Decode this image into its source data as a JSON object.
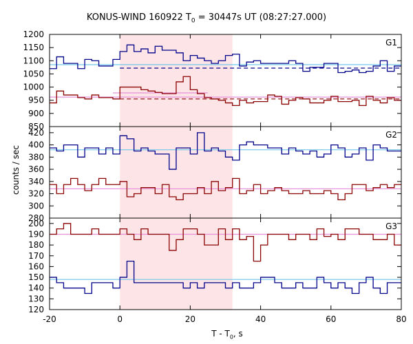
{
  "title_prefix": "KONUS-WIND 160922 T",
  "title_sub": "0",
  "title_suffix": " = 30447s UT (08:27:27.000)",
  "ylabel": "counts / sec",
  "xlabel_prefix": "T - T",
  "xlabel_sub": "0",
  "xlabel_suffix": ", s",
  "chart_data": {
    "type": "line",
    "description_style": "step histograms in three stacked panels",
    "x_axis": {
      "range": [
        -20,
        80
      ],
      "ticks": [
        -20,
        0,
        20,
        40,
        60,
        80
      ]
    },
    "shaded_interval": {
      "x": [
        0,
        32
      ],
      "color": "#fde4e6"
    },
    "bin_edges": [
      -20,
      -18,
      -16,
      -14,
      -12,
      -10,
      -8,
      -6,
      -4,
      -2,
      0,
      2,
      4,
      6,
      8,
      10,
      12,
      14,
      16,
      18,
      20,
      22,
      24,
      26,
      28,
      30,
      32,
      34,
      36,
      38,
      40,
      42,
      44,
      46,
      48,
      50,
      52,
      54,
      56,
      58,
      60,
      62,
      64,
      66,
      68,
      70,
      72,
      74,
      76,
      78,
      80
    ],
    "panels": [
      {
        "name": "G1",
        "ylim": [
          850,
          1200
        ],
        "yticks": [
          850,
          900,
          950,
          1000,
          1050,
          1100,
          1150,
          1200
        ],
        "series": [
          {
            "color": "#00008b",
            "values": [
              1070,
              1115,
              1090,
              1090,
              1070,
              1105,
              1100,
              1080,
              1080,
              1105,
              1135,
              1160,
              1135,
              1145,
              1130,
              1155,
              1140,
              1140,
              1130,
              1100,
              1120,
              1110,
              1100,
              1090,
              1100,
              1120,
              1125,
              1080,
              1095,
              1100,
              1090,
              1090,
              1090,
              1090,
              1100,
              1090,
              1060,
              1075,
              1075,
              1090,
              1090,
              1055,
              1060,
              1065,
              1055,
              1060,
              1080,
              1100,
              1060,
              1080
            ],
            "background_level": 1072,
            "background_style": "dashed",
            "fit_level": 1085,
            "fit_color": "#6ec6ea"
          },
          {
            "color": "#8b0000",
            "values": [
              940,
              985,
              970,
              970,
              960,
              955,
              970,
              960,
              960,
              955,
              1000,
              1000,
              1000,
              990,
              985,
              980,
              975,
              975,
              1020,
              1040,
              990,
              975,
              960,
              955,
              950,
              940,
              930,
              950,
              940,
              945,
              945,
              970,
              965,
              935,
              950,
              960,
              955,
              940,
              940,
              950,
              965,
              945,
              945,
              950,
              930,
              965,
              950,
              940,
              960,
              950
            ],
            "background_level": 955,
            "background_style": "dashed",
            "fit_level": 962,
            "fit_color": "#e58fd8",
            "fit_segment": {
              "x": [
                -2,
                25
              ],
              "level": 978
            }
          }
        ]
      },
      {
        "name": "G2",
        "ylim": [
          280,
          430
        ],
        "yticks": [
          280,
          300,
          320,
          340,
          360,
          380,
          400,
          420
        ],
        "series": [
          {
            "color": "#00008b",
            "values": [
              395,
              390,
              400,
              400,
              380,
              395,
              395,
              385,
              395,
              385,
              415,
              410,
              390,
              395,
              390,
              385,
              385,
              360,
              395,
              395,
              385,
              420,
              390,
              395,
              390,
              380,
              375,
              400,
              405,
              400,
              400,
              395,
              395,
              385,
              395,
              390,
              385,
              390,
              380,
              385,
              400,
              395,
              380,
              385,
              395,
              375,
              400,
              395,
              390,
              390
            ],
            "fit_level": 392,
            "fit_color": "#6ec6ea"
          },
          {
            "color": "#8b0000",
            "values": [
              335,
              320,
              335,
              345,
              335,
              325,
              335,
              345,
              335,
              335,
              340,
              315,
              320,
              330,
              330,
              320,
              335,
              315,
              310,
              320,
              320,
              330,
              320,
              340,
              325,
              330,
              345,
              320,
              325,
              335,
              320,
              325,
              330,
              325,
              320,
              320,
              325,
              320,
              320,
              325,
              320,
              310,
              320,
              335,
              335,
              325,
              330,
              335,
              330,
              335
            ],
            "fit_level": 328,
            "fit_color": "#e58fd8"
          }
        ]
      },
      {
        "name": "G3",
        "ylim": [
          120,
          205
        ],
        "yticks": [
          120,
          130,
          140,
          150,
          160,
          170,
          180,
          190,
          200
        ],
        "series": [
          {
            "color": "#8b0000",
            "values": [
              190,
              195,
              200,
              190,
              190,
              190,
              195,
              190,
              190,
              190,
              195,
              190,
              185,
              195,
              190,
              190,
              190,
              175,
              185,
              195,
              195,
              190,
              180,
              180,
              195,
              185,
              195,
              185,
              188,
              165,
              180,
              190,
              190,
              190,
              185,
              190,
              190,
              185,
              195,
              188,
              190,
              185,
              195,
              195,
              190,
              190,
              185,
              185,
              190,
              180
            ],
            "fit_level": 190,
            "fit_color": "#e58fd8"
          },
          {
            "color": "#00008b",
            "values": [
              150,
              145,
              140,
              140,
              140,
              135,
              145,
              145,
              145,
              140,
              150,
              165,
              145,
              145,
              145,
              145,
              145,
              145,
              145,
              140,
              145,
              140,
              145,
              145,
              145,
              140,
              145,
              140,
              140,
              145,
              150,
              150,
              145,
              140,
              140,
              145,
              140,
              140,
              150,
              145,
              140,
              145,
              140,
              135,
              145,
              150,
              140,
              135,
              145,
              145
            ],
            "fit_level": 148,
            "fit_color": "#6ec6ea"
          }
        ]
      }
    ]
  }
}
